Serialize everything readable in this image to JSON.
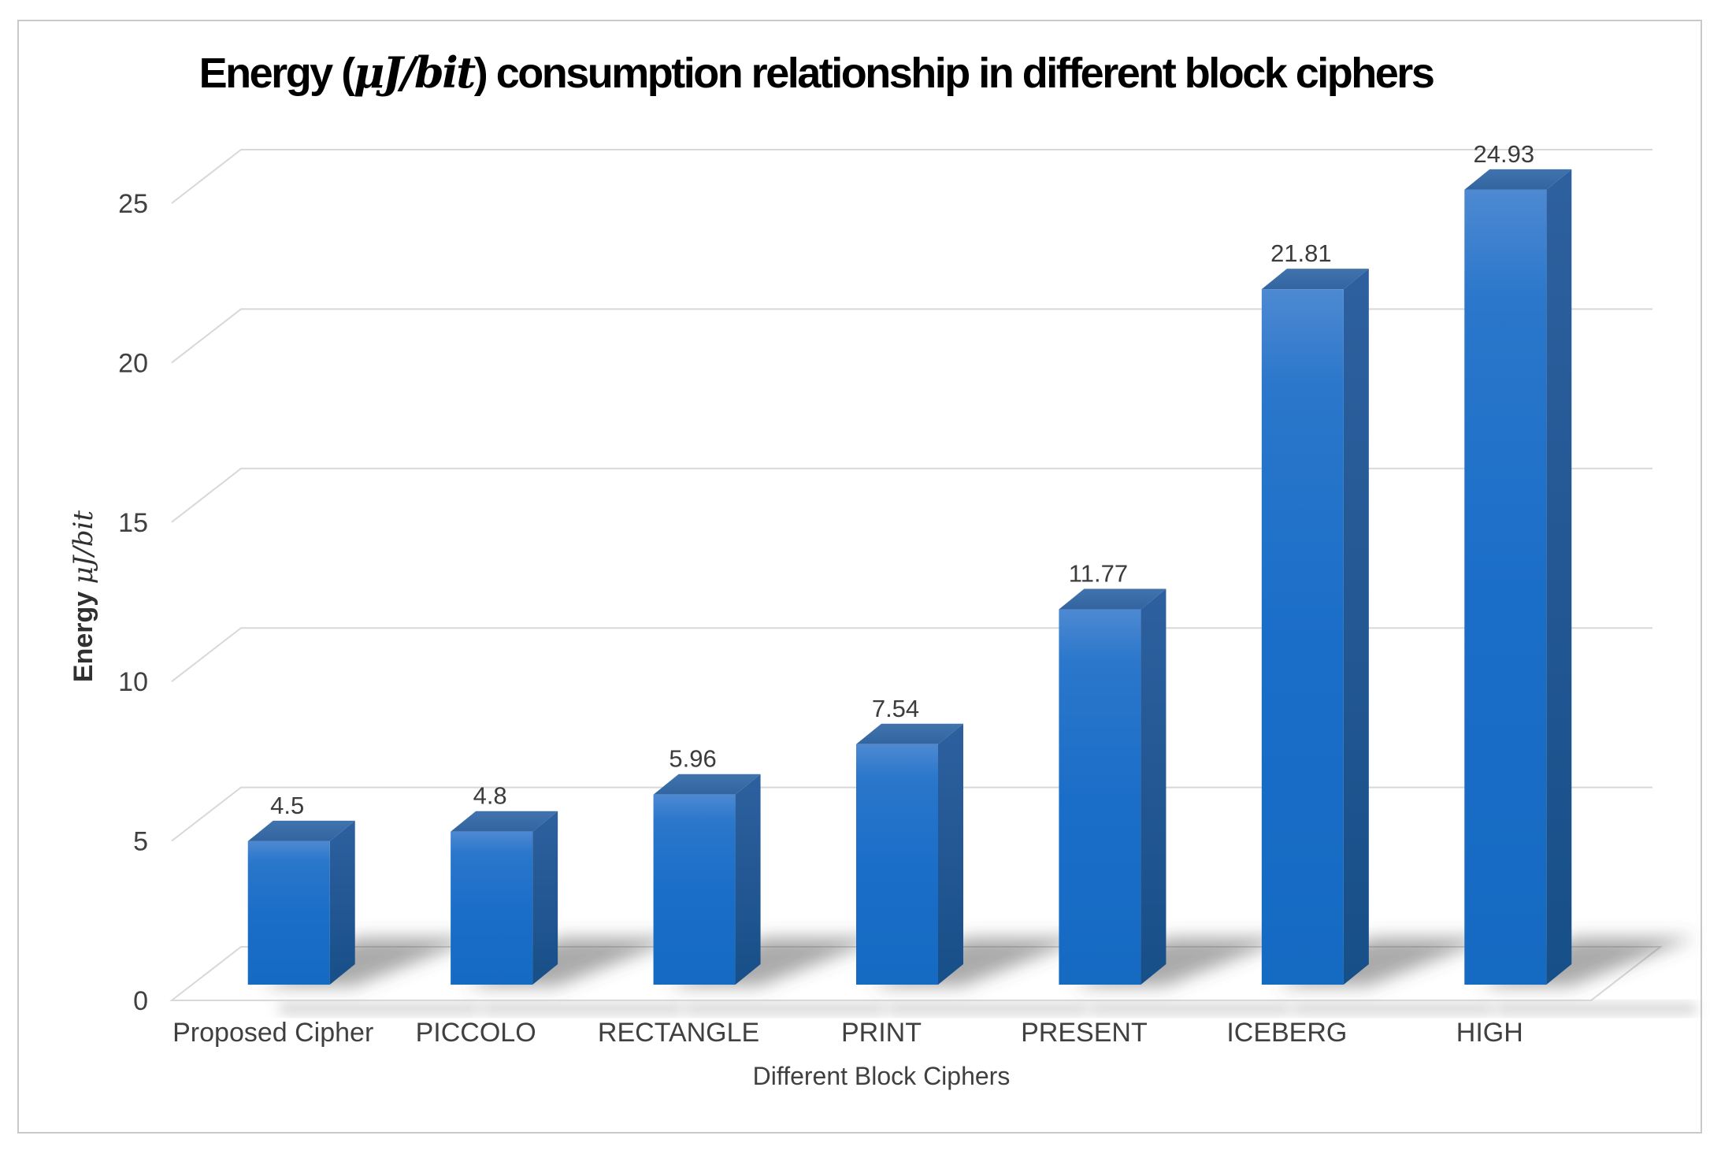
{
  "title": {
    "text_before_math": "Energy (",
    "math": "μJ/bit",
    "text_after_math": ") consumption relationship in different block ciphers"
  },
  "chart_data": {
    "type": "bar",
    "projection": "3d",
    "title": "Energy (μJ/bit) consumption relationship in different block ciphers",
    "categories": [
      "Proposed Cipher",
      "PICCOLO",
      "RECTANGLE",
      "PRINT",
      "PRESENT",
      "ICEBERG",
      "HIGH"
    ],
    "values": [
      4.5,
      4.8,
      5.96,
      7.54,
      11.77,
      21.81,
      24.93
    ],
    "data_labels": [
      "4.5",
      "4.8",
      "5.96",
      "7.54",
      "11.77",
      "21.81",
      "24.93"
    ],
    "xlabel": "Different Block Ciphers",
    "ylabel": "Energy μJ/bit",
    "ylabel_bold_part": "Energy ",
    "ylabel_math_part": "μJ/bit",
    "ylim": [
      0,
      25
    ],
    "ytick_interval": 5,
    "ytick_labels": [
      "0",
      "5",
      "10",
      "15",
      "20",
      "25"
    ],
    "grid": true,
    "legend": false
  },
  "colors": {
    "bar_front": "#1b6ec8",
    "bar_front_light": "#4e89d2",
    "bar_front_mid": "#2a77cb",
    "bar_front_deep": "#156ac2",
    "bar_side_top": "#2e609f",
    "bar_side_bottom": "#174f88",
    "bar_top_light": "#4174ae",
    "bar_top_dark": "#32649f",
    "gridline": "#d8d8d8",
    "axis_text": "#404040",
    "title_text": "#000000",
    "shadow": "#565656",
    "frame_border": "#c9c9c9"
  }
}
